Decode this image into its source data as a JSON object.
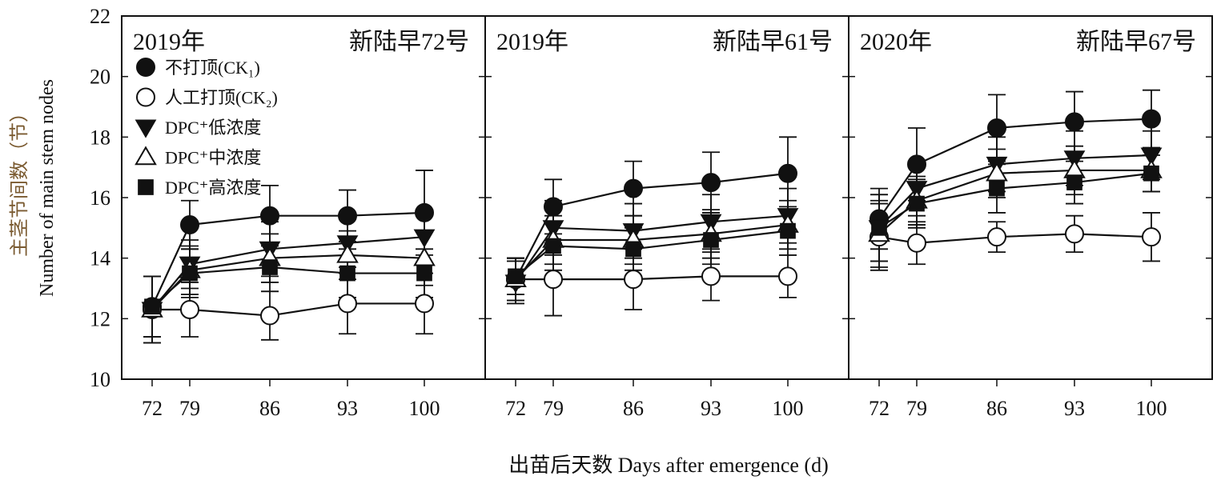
{
  "chart_data": {
    "type": "line",
    "xlabel": "出苗后天数 Days after emergence (d)",
    "ylabel_cn": "主茎节间数（节）",
    "ylabel_en": "Number of main stem nodes",
    "ylim": [
      10,
      22
    ],
    "yticks": [
      10,
      12,
      14,
      16,
      18,
      20,
      22
    ],
    "x": [
      72,
      79,
      86,
      93,
      100
    ],
    "legend": {
      "placement": "upper-left of first panel",
      "entries": [
        {
          "marker": "filled-circle",
          "label": "不打顶(CK₁)"
        },
        {
          "marker": "open-circle",
          "label": "人工打顶(CK₂)"
        },
        {
          "marker": "filled-triangle-down",
          "label": "DPC⁺低浓度"
        },
        {
          "marker": "open-triangle-up",
          "label": "DPC⁺中浓度"
        },
        {
          "marker": "filled-square",
          "label": "DPC⁺高浓度"
        }
      ]
    },
    "panels": [
      {
        "year": "2019年",
        "cultivar": "新陆早72号",
        "series": [
          {
            "marker": "filled-circle",
            "values": [
              12.4,
              15.1,
              15.4,
              15.4,
              15.5
            ],
            "err": [
              1.0,
              0.8,
              1.0,
              0.85,
              1.4
            ]
          },
          {
            "marker": "open-circle",
            "values": [
              12.3,
              12.3,
              12.1,
              12.5,
              12.5
            ],
            "err": [
              1.1,
              0.9,
              0.8,
              1.0,
              1.0
            ]
          },
          {
            "marker": "filled-triangle-down",
            "values": [
              12.3,
              13.8,
              14.3,
              14.5,
              14.7
            ],
            "err": [
              1.1,
              0.8,
              0.9,
              0.8,
              0.9
            ]
          },
          {
            "marker": "open-triangle-up",
            "values": [
              12.3,
              13.6,
              14.0,
              14.1,
              14.0
            ],
            "err": [
              1.1,
              0.8,
              0.8,
              0.8,
              0.9
            ]
          },
          {
            "marker": "filled-square",
            "values": [
              12.4,
              13.5,
              13.7,
              13.5,
              13.5
            ],
            "err": [
              1.0,
              0.8,
              0.8,
              0.8,
              0.8
            ]
          }
        ]
      },
      {
        "year": "2019年",
        "cultivar": "新陆早61号",
        "series": [
          {
            "marker": "filled-circle",
            "values": [
              13.3,
              15.7,
              16.3,
              16.5,
              16.8
            ],
            "err": [
              0.7,
              0.9,
              0.9,
              1.0,
              1.2
            ]
          },
          {
            "marker": "open-circle",
            "values": [
              13.3,
              13.3,
              13.3,
              13.4,
              13.4
            ],
            "err": [
              0.7,
              1.2,
              1.0,
              0.8,
              0.7
            ]
          },
          {
            "marker": "filled-triangle-down",
            "values": [
              13.2,
              15.0,
              14.9,
              15.2,
              15.4
            ],
            "err": [
              0.7,
              0.9,
              0.9,
              0.9,
              0.9
            ]
          },
          {
            "marker": "open-triangle-up",
            "values": [
              13.3,
              14.6,
              14.6,
              14.8,
              15.1
            ],
            "err": [
              0.7,
              0.8,
              0.8,
              0.8,
              0.8
            ]
          },
          {
            "marker": "filled-square",
            "values": [
              13.4,
              14.4,
              14.3,
              14.6,
              14.9
            ],
            "err": [
              0.6,
              0.8,
              0.7,
              0.8,
              0.8
            ]
          }
        ]
      },
      {
        "year": "2020年",
        "cultivar": "新陆早67号",
        "series": [
          {
            "marker": "filled-circle",
            "values": [
              15.3,
              17.1,
              18.3,
              18.5,
              18.6
            ],
            "err": [
              1.0,
              1.2,
              1.1,
              1.0,
              0.95
            ]
          },
          {
            "marker": "open-circle",
            "values": [
              14.7,
              14.5,
              14.7,
              14.8,
              14.7
            ],
            "err": [
              1.1,
              0.7,
              0.5,
              0.6,
              0.8
            ]
          },
          {
            "marker": "filled-triangle-down",
            "values": [
              15.0,
              16.3,
              17.1,
              17.3,
              17.4
            ],
            "err": [
              1.1,
              0.9,
              0.9,
              0.9,
              0.8
            ]
          },
          {
            "marker": "open-triangle-up",
            "values": [
              14.8,
              15.9,
              16.8,
              16.9,
              16.9
            ],
            "err": [
              1.1,
              0.8,
              0.8,
              0.8,
              0.7
            ]
          },
          {
            "marker": "filled-square",
            "values": [
              15.0,
              15.8,
              16.3,
              16.5,
              16.8
            ],
            "err": [
              1.1,
              0.8,
              0.8,
              0.7,
              0.6
            ]
          }
        ]
      }
    ]
  }
}
